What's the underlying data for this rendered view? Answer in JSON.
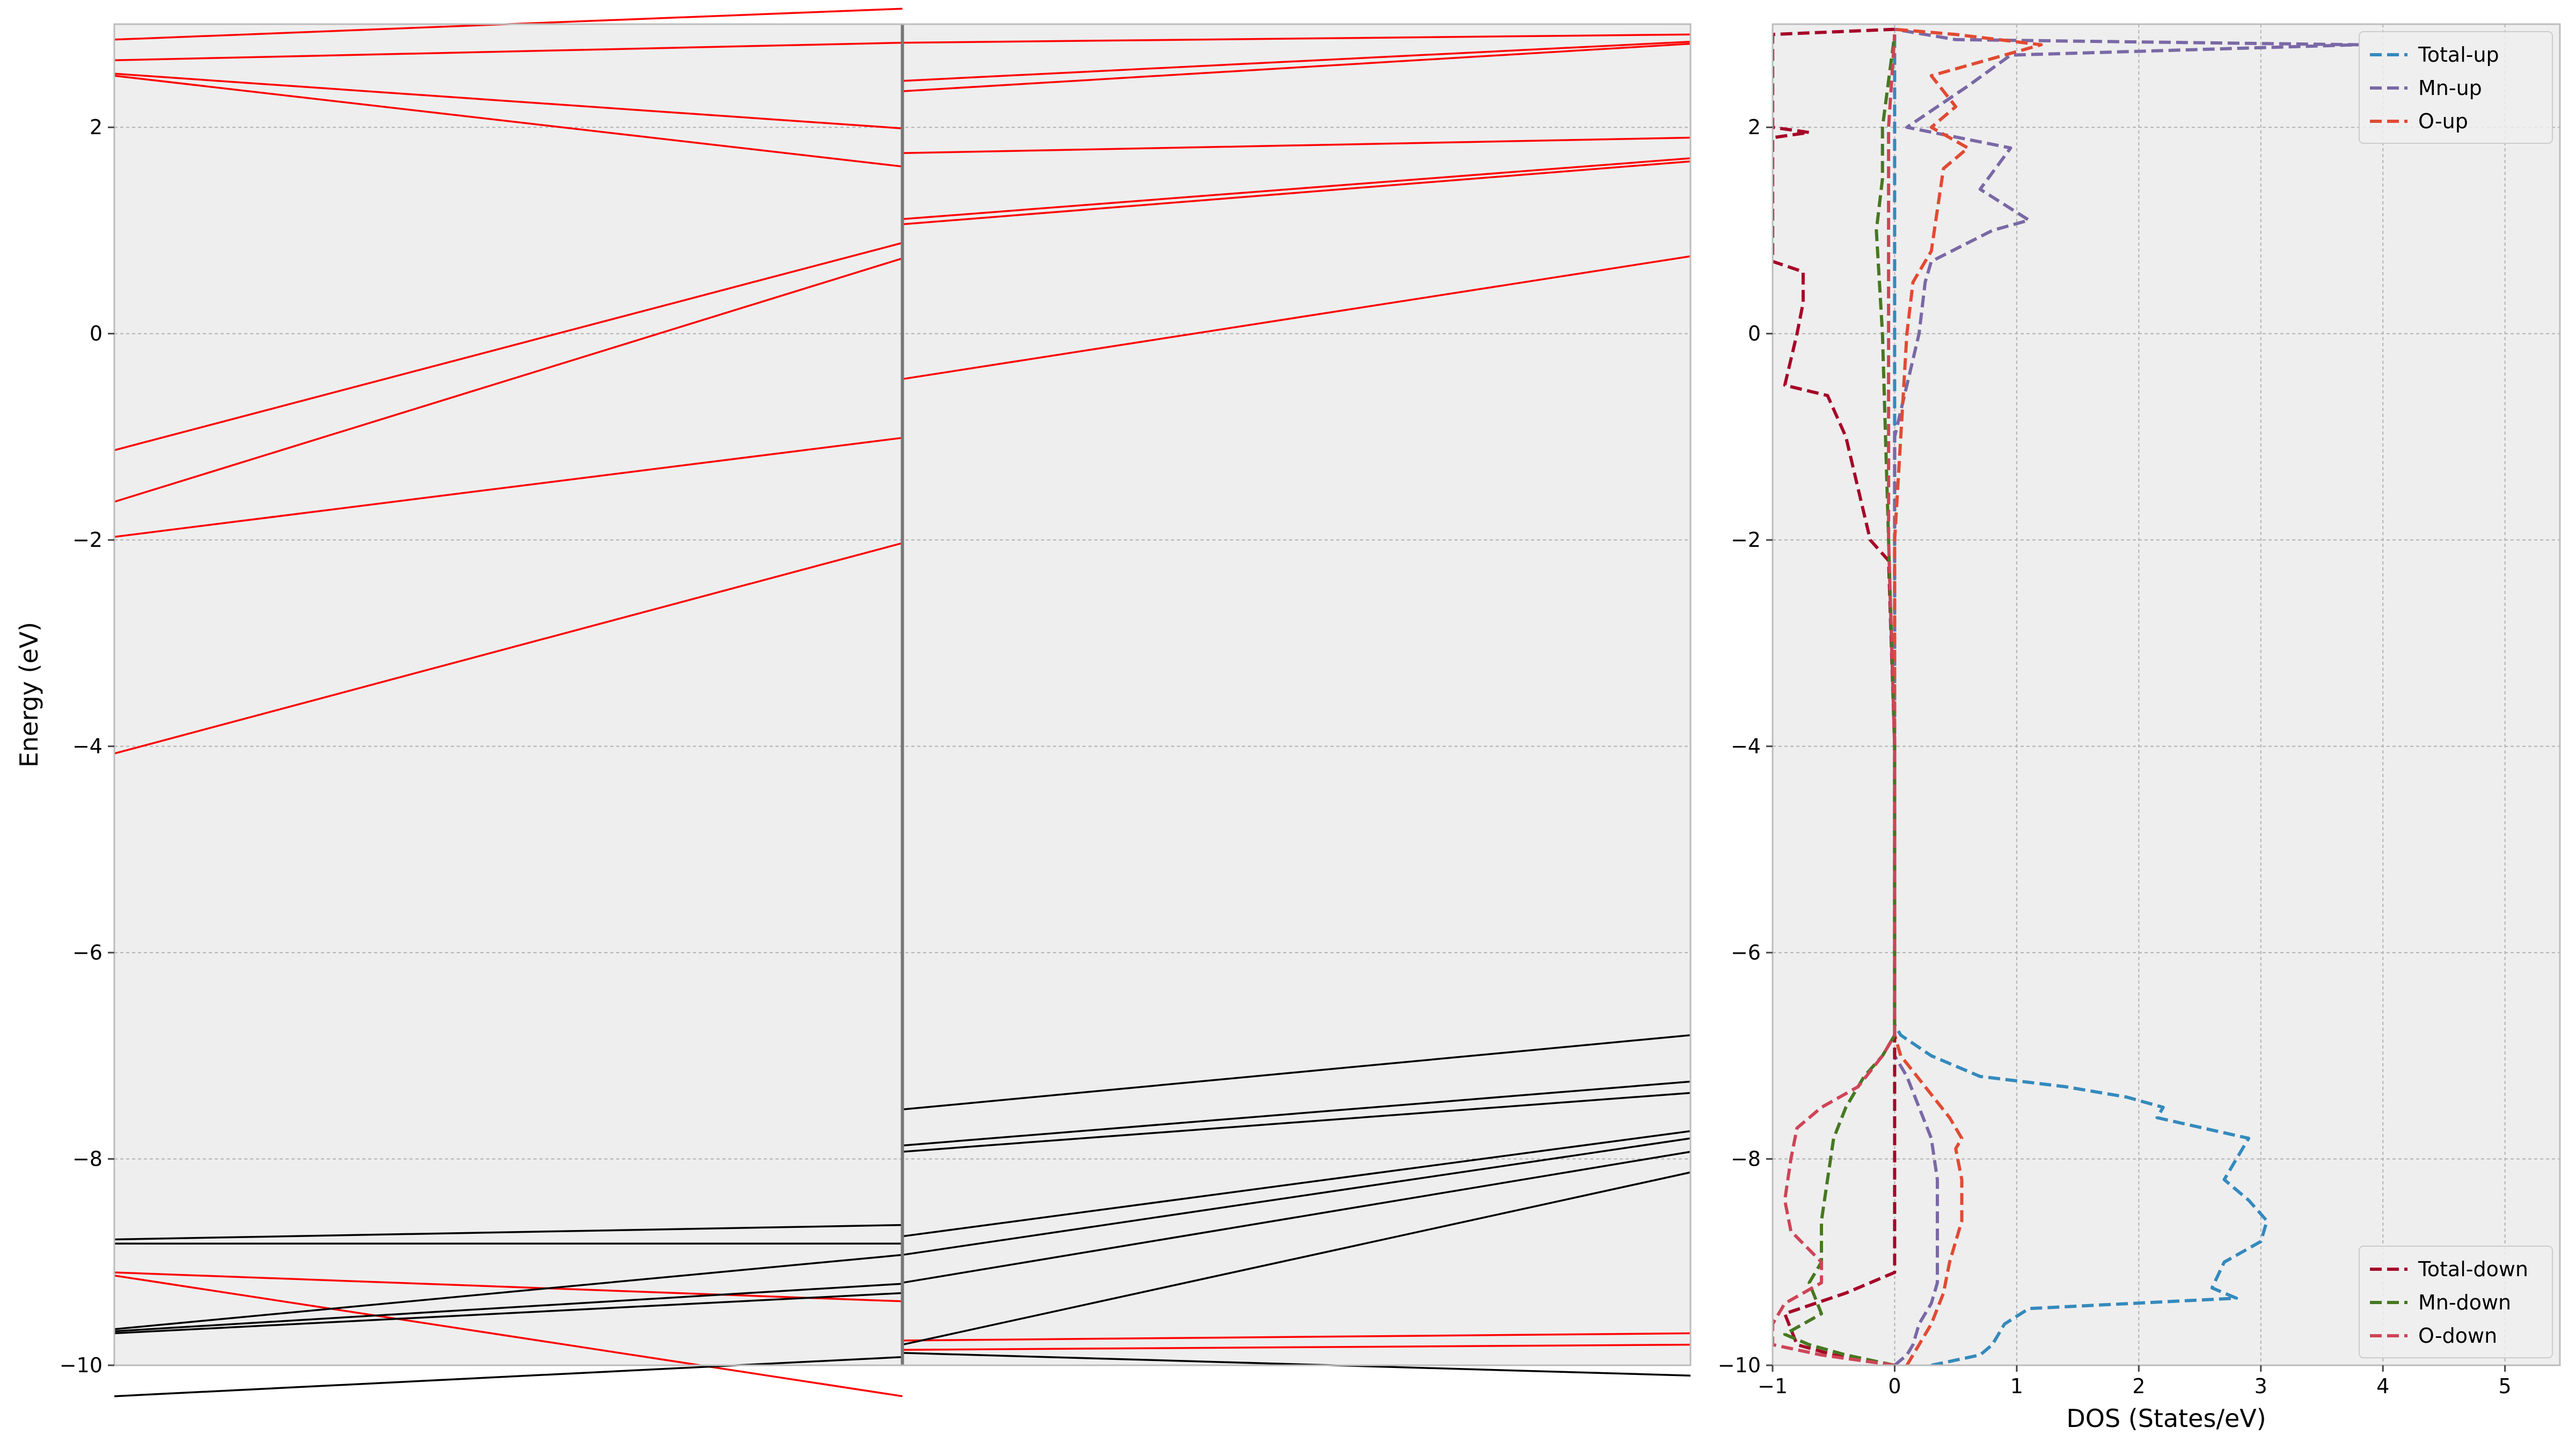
{
  "chart_data": [
    {
      "type": "line",
      "panel": "band-structure",
      "ylabel": "Energy (eV)",
      "xlabel": "",
      "ylim": [
        -10,
        3
      ],
      "xlim": [
        0,
        2
      ],
      "kpoint_divider": 1,
      "yticks": [
        -10,
        -8,
        -6,
        -4,
        -2,
        0,
        2
      ],
      "ytick_labels": [
        "−10",
        "−8",
        "−6",
        "−4",
        "−2",
        "0",
        "2"
      ],
      "grid": true,
      "colors": {
        "spin_up": "#ff0000",
        "spin_down": "#000000",
        "divider": "#777777"
      },
      "series": [
        {
          "spin": "up",
          "x": [
            0,
            1
          ],
          "y": [
            2.85,
            3.15
          ]
        },
        {
          "spin": "up",
          "x": [
            0,
            1
          ],
          "y": [
            2.65,
            2.82
          ]
        },
        {
          "spin": "up",
          "x": [
            0,
            1
          ],
          "y": [
            2.52,
            1.99
          ]
        },
        {
          "spin": "up",
          "x": [
            0,
            1
          ],
          "y": [
            2.5,
            1.62
          ]
        },
        {
          "spin": "up",
          "x": [
            0,
            1
          ],
          "y": [
            -1.13,
            0.88
          ]
        },
        {
          "spin": "up",
          "x": [
            0,
            1
          ],
          "y": [
            -1.63,
            0.73
          ]
        },
        {
          "spin": "up",
          "x": [
            0,
            1
          ],
          "y": [
            -1.97,
            -1.01
          ]
        },
        {
          "spin": "up",
          "x": [
            0,
            1
          ],
          "y": [
            -4.07,
            -2.03
          ]
        },
        {
          "spin": "up",
          "x": [
            0,
            1
          ],
          "y": [
            -9.1,
            -9.38
          ]
        },
        {
          "spin": "up",
          "x": [
            0,
            1
          ],
          "y": [
            -9.13,
            -10.3
          ]
        },
        {
          "spin": "up",
          "x": [
            1,
            2
          ],
          "y": [
            2.82,
            2.9
          ]
        },
        {
          "spin": "up",
          "x": [
            1,
            2
          ],
          "y": [
            2.45,
            2.83
          ]
        },
        {
          "spin": "up",
          "x": [
            1,
            2
          ],
          "y": [
            2.35,
            2.81
          ]
        },
        {
          "spin": "up",
          "x": [
            1,
            2
          ],
          "y": [
            1.75,
            1.9
          ]
        },
        {
          "spin": "up",
          "x": [
            1,
            2
          ],
          "y": [
            1.11,
            1.7
          ]
        },
        {
          "spin": "up",
          "x": [
            1,
            2
          ],
          "y": [
            1.06,
            1.67
          ]
        },
        {
          "spin": "up",
          "x": [
            1,
            2
          ],
          "y": [
            -0.44,
            0.75
          ]
        },
        {
          "spin": "up",
          "x": [
            1,
            2
          ],
          "y": [
            -9.76,
            -9.69
          ]
        },
        {
          "spin": "up",
          "x": [
            1,
            2
          ],
          "y": [
            -9.85,
            -9.8
          ]
        },
        {
          "spin": "down",
          "x": [
            0,
            1
          ],
          "y": [
            -8.78,
            -8.64
          ]
        },
        {
          "spin": "down",
          "x": [
            0,
            1
          ],
          "y": [
            -8.82,
            -8.82
          ]
        },
        {
          "spin": "down",
          "x": [
            0,
            1
          ],
          "y": [
            -9.65,
            -8.93
          ]
        },
        {
          "spin": "down",
          "x": [
            0,
            1
          ],
          "y": [
            -9.67,
            -9.21
          ]
        },
        {
          "spin": "down",
          "x": [
            0,
            1
          ],
          "y": [
            -9.69,
            -9.3
          ]
        },
        {
          "spin": "down",
          "x": [
            0,
            1
          ],
          "y": [
            -10.3,
            -9.92
          ]
        },
        {
          "spin": "down",
          "x": [
            1,
            2
          ],
          "y": [
            -7.52,
            -6.8
          ]
        },
        {
          "spin": "down",
          "x": [
            1,
            2
          ],
          "y": [
            -7.87,
            -7.25
          ]
        },
        {
          "spin": "down",
          "x": [
            1,
            2
          ],
          "y": [
            -7.93,
            -7.36
          ]
        },
        {
          "spin": "down",
          "x": [
            1,
            2
          ],
          "y": [
            -8.75,
            -7.73
          ]
        },
        {
          "spin": "down",
          "x": [
            1,
            2
          ],
          "y": [
            -8.93,
            -7.8
          ]
        },
        {
          "spin": "down",
          "x": [
            1,
            2
          ],
          "y": [
            -9.2,
            -7.93
          ]
        },
        {
          "spin": "down",
          "x": [
            1,
            2
          ],
          "y": [
            -9.8,
            -8.13
          ]
        },
        {
          "spin": "down",
          "x": [
            1,
            2
          ],
          "y": [
            -9.88,
            -10.1
          ]
        }
      ]
    },
    {
      "type": "line",
      "panel": "dos",
      "xlabel": "DOS (States/eV)",
      "ylabel": "",
      "xlim": [
        -1,
        5.45
      ],
      "ylim": [
        -10,
        3
      ],
      "xticks": [
        -1,
        0,
        1,
        2,
        3,
        4,
        5
      ],
      "xtick_labels": [
        "−1",
        "0",
        "1",
        "2",
        "3",
        "4",
        "5"
      ],
      "yticks": [
        -10,
        -8,
        -6,
        -4,
        -2,
        0,
        2
      ],
      "ytick_labels": [
        "−10",
        "−8",
        "−6",
        "−4",
        "−2",
        "0",
        "2"
      ],
      "grid": true,
      "legends": [
        {
          "position": "upper-right",
          "entries": [
            "Total-up",
            "Mn-up",
            "O-up"
          ]
        },
        {
          "position": "lower-right",
          "entries": [
            "Total-down",
            "Mn-down",
            "O-down"
          ]
        }
      ],
      "series": [
        {
          "name": "Total-up",
          "color": "#348abd",
          "y": [
            -10.0,
            -9.9,
            -9.8,
            -9.6,
            -9.45,
            -9.35,
            -9.25,
            -9.0,
            -8.8,
            -8.6,
            -8.4,
            -8.2,
            -8.0,
            -7.8,
            -7.6,
            -7.5,
            -7.4,
            -7.3,
            -7.2,
            -7.0,
            -6.8,
            -6.7,
            -6.0,
            -4.0,
            -2.0,
            0.0,
            2.0,
            2.95
          ],
          "x": [
            0.3,
            0.7,
            0.8,
            0.9,
            1.1,
            2.8,
            2.6,
            2.7,
            3.0,
            3.05,
            2.9,
            2.7,
            2.8,
            2.9,
            2.15,
            2.2,
            1.9,
            1.4,
            0.7,
            0.3,
            0.05,
            0.0,
            0.0,
            0.0,
            0.0,
            0.0,
            0.0,
            0.0
          ]
        },
        {
          "name": "Mn-up",
          "color": "#7a68a6",
          "y": [
            -10.0,
            -9.9,
            -9.8,
            -9.6,
            -9.4,
            -9.2,
            -9.0,
            -8.6,
            -8.2,
            -7.8,
            -7.5,
            -7.2,
            -7.0,
            -6.8,
            -6.0,
            -4.0,
            -2.0,
            -1.0,
            -0.5,
            0.0,
            0.5,
            0.7,
            1.0,
            1.1,
            1.4,
            1.8,
            2.0,
            2.4,
            2.7,
            2.8,
            2.85,
            2.95
          ],
          "x": [
            0.0,
            0.1,
            0.15,
            0.2,
            0.3,
            0.35,
            0.35,
            0.35,
            0.35,
            0.3,
            0.2,
            0.1,
            0.0,
            0.0,
            0.0,
            0.0,
            0.0,
            0.0,
            0.1,
            0.2,
            0.25,
            0.3,
            0.8,
            1.1,
            0.7,
            0.95,
            0.1,
            0.6,
            0.95,
            3.8,
            0.5,
            0.0
          ]
        },
        {
          "name": "O-up",
          "color": "#e24a33",
          "y": [
            -10.0,
            -9.8,
            -9.6,
            -9.3,
            -9.0,
            -8.6,
            -8.2,
            -7.9,
            -7.8,
            -7.6,
            -7.3,
            -7.0,
            -6.8,
            -6.0,
            -4.0,
            -2.0,
            -1.0,
            0.0,
            0.5,
            0.8,
            1.2,
            1.6,
            1.8,
            2.0,
            2.2,
            2.5,
            2.8,
            2.9,
            2.95
          ],
          "x": [
            0.1,
            0.2,
            0.3,
            0.4,
            0.45,
            0.55,
            0.55,
            0.5,
            0.55,
            0.45,
            0.25,
            0.05,
            0.0,
            0.0,
            0.0,
            0.0,
            0.05,
            0.1,
            0.15,
            0.3,
            0.35,
            0.4,
            0.6,
            0.3,
            0.5,
            0.3,
            1.2,
            0.5,
            0.0
          ]
        },
        {
          "name": "Total-down",
          "color": "#a60628",
          "y": [
            -10.0,
            -9.9,
            -9.8,
            -9.5,
            -9.3,
            -9.1,
            -9.0,
            -8.0,
            -7.0,
            -6.0,
            -4.0,
            -2.2,
            -2.0,
            -1.5,
            -1.0,
            -0.6,
            -0.5,
            0.0,
            0.3,
            0.6,
            0.7,
            1.0,
            1.9,
            1.95,
            2.0,
            2.5,
            2.9,
            2.95
          ],
          "x": [
            0.0,
            -0.5,
            -0.8,
            -0.9,
            -0.4,
            0.0,
            0.0,
            0.0,
            0.0,
            0.0,
            0.0,
            -0.05,
            -0.2,
            -0.3,
            -0.4,
            -0.55,
            -0.9,
            -0.8,
            -0.75,
            -0.75,
            -1.0,
            -1.0,
            -1.0,
            -0.7,
            -1.0,
            -1.0,
            -1.0,
            0.0
          ]
        },
        {
          "name": "Mn-down",
          "color": "#467821",
          "y": [
            -10.0,
            -9.9,
            -9.8,
            -9.7,
            -9.5,
            -9.2,
            -9.0,
            -8.6,
            -8.2,
            -7.8,
            -7.5,
            -7.2,
            -7.0,
            -6.8,
            -6.0,
            -4.0,
            -2.0,
            0.0,
            1.0,
            1.5,
            2.0,
            2.9
          ],
          "x": [
            0.0,
            -0.4,
            -0.7,
            -0.9,
            -0.6,
            -0.7,
            -0.6,
            -0.6,
            -0.55,
            -0.5,
            -0.4,
            -0.25,
            -0.1,
            0.0,
            0.0,
            0.0,
            -0.05,
            -0.1,
            -0.15,
            -0.1,
            -0.1,
            0.0
          ]
        },
        {
          "name": "O-down",
          "color": "#cf4457",
          "y": [
            -10.0,
            -9.9,
            -9.8,
            -9.6,
            -9.4,
            -9.2,
            -9.0,
            -8.7,
            -8.4,
            -8.0,
            -7.7,
            -7.5,
            -7.3,
            -7.0,
            -6.8,
            -6.0,
            -4.0,
            -2.0,
            0.0,
            2.0,
            2.9
          ],
          "x": [
            0.0,
            -0.6,
            -1.0,
            -1.0,
            -0.9,
            -0.6,
            -0.6,
            -0.85,
            -0.9,
            -0.85,
            -0.8,
            -0.6,
            -0.3,
            -0.1,
            0.0,
            0.0,
            0.0,
            -0.05,
            -0.05,
            -0.05,
            0.0
          ]
        }
      ]
    }
  ]
}
